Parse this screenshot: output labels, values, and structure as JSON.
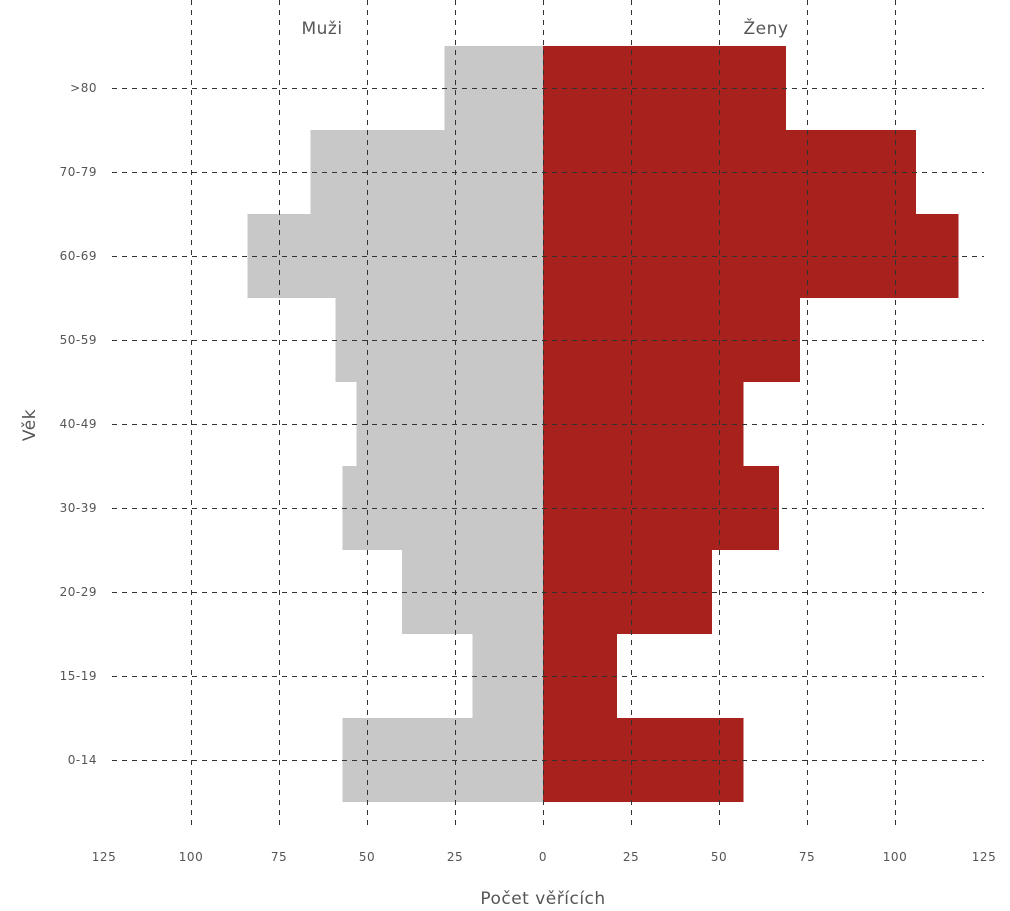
{
  "chart_data": {
    "type": "bar",
    "orientation": "horizontal",
    "categories": [
      ">80",
      "70-79",
      "60-69",
      "50-59",
      "40-49",
      "30-39",
      "20-29",
      "15-19",
      "0-14"
    ],
    "series": [
      {
        "name": "Muži",
        "color": "#c8c8c8",
        "values": [
          28,
          66,
          84,
          59,
          53,
          57,
          40,
          20,
          57
        ]
      },
      {
        "name": "Ženy",
        "color": "#a7221c",
        "values": [
          69,
          106,
          118,
          73,
          57,
          67,
          48,
          21,
          57
        ]
      }
    ],
    "xlabel": "Počet věřících",
    "ylabel": "Věk",
    "xlim": [
      -125,
      125
    ],
    "x_tick_values": [
      -125,
      -100,
      -75,
      -50,
      -25,
      0,
      25,
      50,
      75,
      100,
      125
    ],
    "x_tick_labels": [
      "125",
      "100",
      "75",
      "50",
      "25",
      "0",
      "25",
      "50",
      "75",
      "100",
      "125"
    ],
    "grid": true,
    "legend": "top"
  }
}
